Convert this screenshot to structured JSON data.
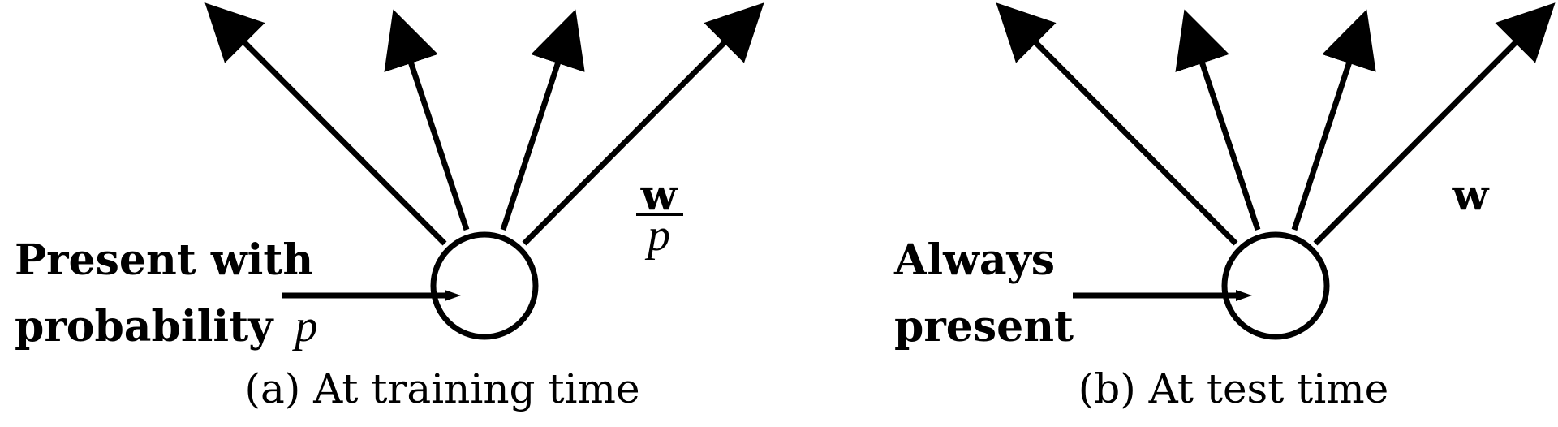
{
  "panels": [
    {
      "label_line1": "Present with",
      "label_line2": "probability",
      "label_var": "p",
      "weight_numer": "w",
      "weight_denom": "p",
      "caption": "(a) At training time"
    },
    {
      "label_line1": "Always",
      "label_line2": "present",
      "weight": "w",
      "caption": "(b) At test time"
    }
  ],
  "colors": {
    "stroke": "#000000",
    "background": "#ffffff"
  }
}
